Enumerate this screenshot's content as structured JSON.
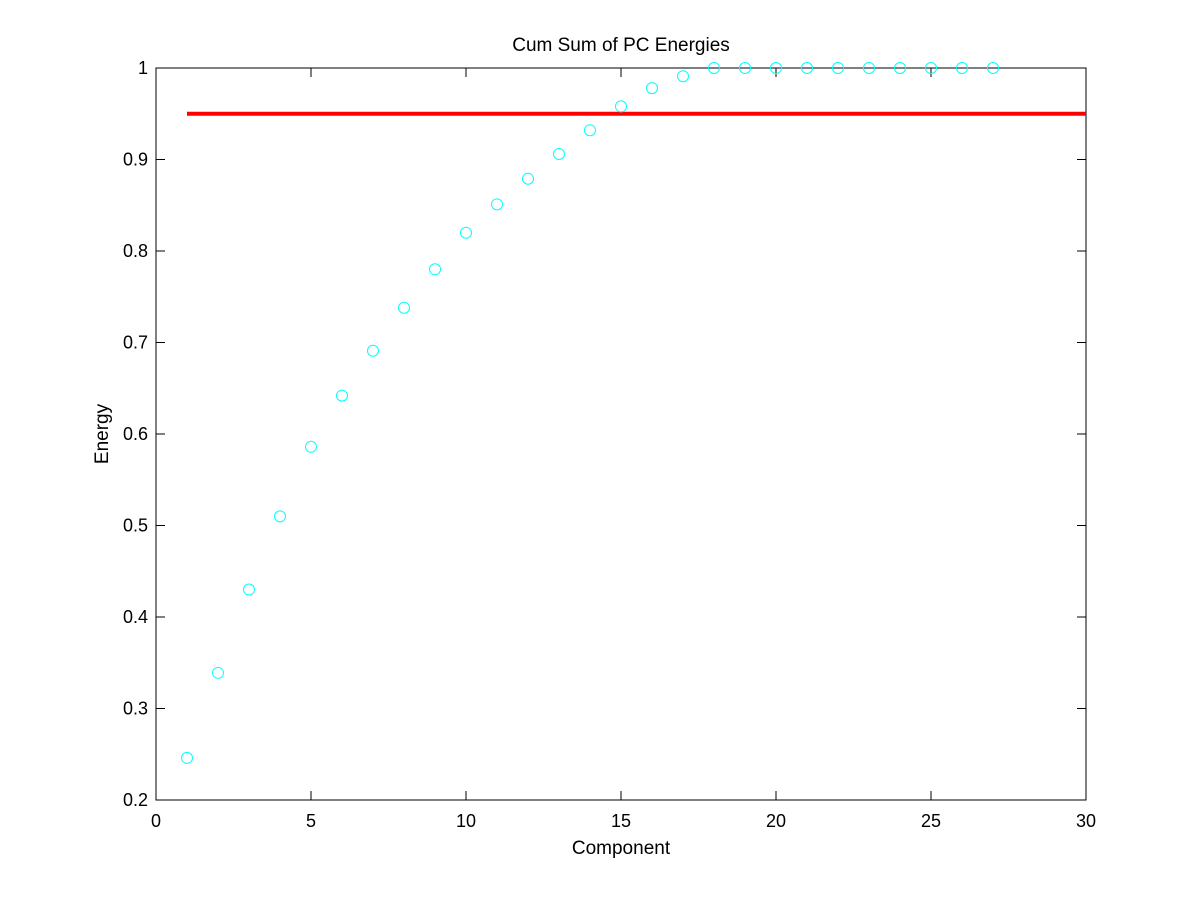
{
  "chart_data": {
    "type": "scatter",
    "title": "Cum Sum of PC Energies",
    "xlabel": "Component",
    "ylabel": "Energy",
    "xlim": [
      0,
      30
    ],
    "ylim": [
      0.2,
      1
    ],
    "xticks": [
      "0",
      "5",
      "10",
      "15",
      "20",
      "25",
      "30"
    ],
    "yticks": [
      "0.2",
      "0.3",
      "0.4",
      "0.5",
      "0.6",
      "0.7",
      "0.8",
      "0.9",
      "1"
    ],
    "grid": false,
    "legend": "none",
    "series": [
      {
        "marker": "circle",
        "color": "#00ffff",
        "x": [
          1,
          2,
          3,
          4,
          5,
          6,
          7,
          8,
          9,
          10,
          11,
          12,
          13,
          14,
          15,
          16,
          17,
          18,
          19,
          20,
          21,
          22,
          23,
          24,
          25,
          26,
          27
        ],
        "y": [
          0.246,
          0.339,
          0.43,
          0.51,
          0.586,
          0.642,
          0.691,
          0.738,
          0.78,
          0.82,
          0.851,
          0.879,
          0.906,
          0.932,
          0.958,
          0.978,
          0.991,
          1.0,
          1.0,
          1.0,
          1.0,
          1.0,
          1.0,
          1.0,
          1.0,
          1.0,
          1.0
        ]
      }
    ],
    "threshold_line": {
      "y": 0.95,
      "x_start": 1,
      "x_end": 30,
      "color": "#ff0000"
    }
  }
}
